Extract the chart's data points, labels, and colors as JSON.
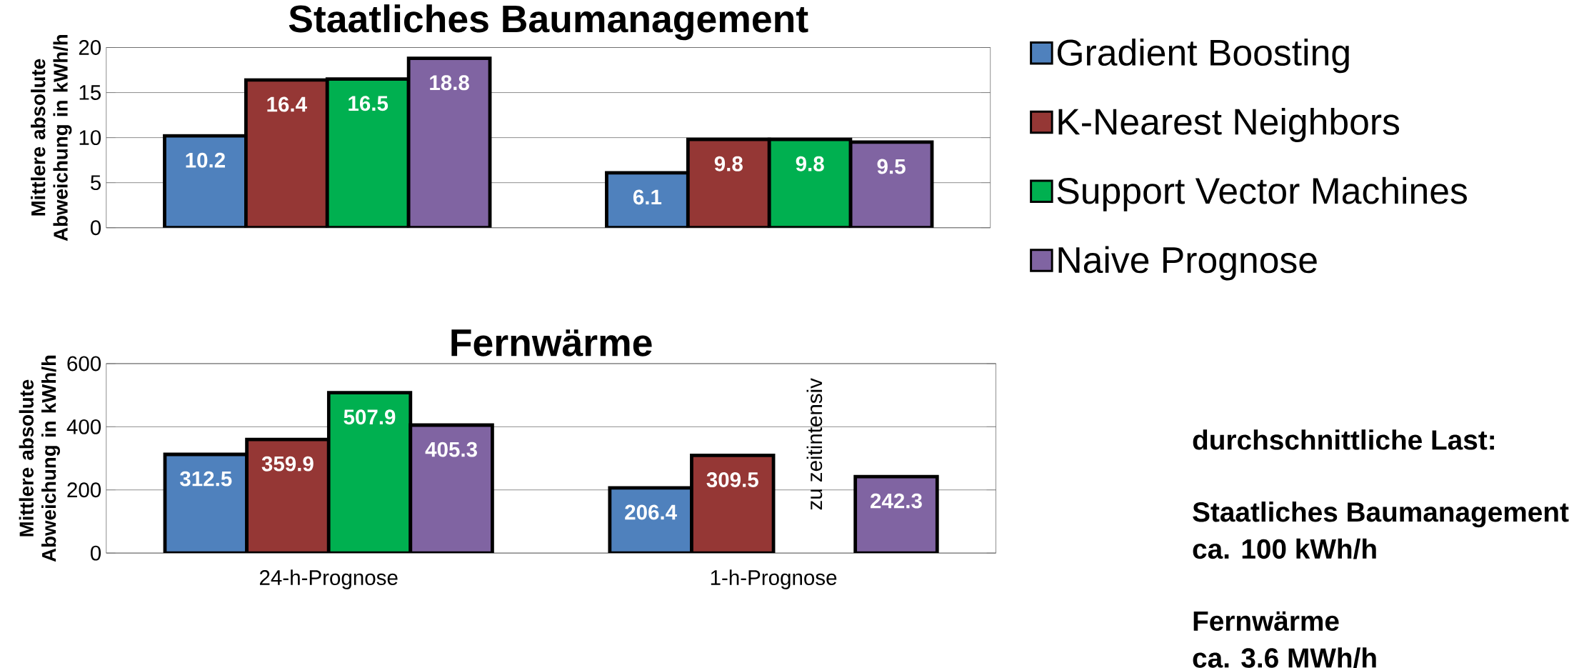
{
  "chart_data": [
    {
      "type": "bar",
      "title": "Staatliches Baumanagement",
      "ylabel": "Mittlere absolute Abweichung in kWh/h",
      "categories": [
        null,
        null
      ],
      "tick_labels": "y",
      "series": [
        {
          "name": "Gradient Boosting",
          "color": "#4f81bd",
          "values": [
            10.2,
            6.1
          ]
        },
        {
          "name": "K-Nearest Neighbors",
          "color": "#953735",
          "values": [
            16.4,
            9.8
          ]
        },
        {
          "name": "Support Vector Machines",
          "color": "#00b050",
          "values": [
            16.5,
            9.8
          ]
        },
        {
          "name": "Naive Prognose",
          "color": "#8064a2",
          "values": [
            18.8,
            9.5
          ]
        }
      ],
      "ylim": [
        0,
        20
      ],
      "yticks": [
        0,
        5,
        10,
        15,
        20
      ],
      "grid": "y",
      "legend": "right",
      "data_labels": true
    },
    {
      "type": "bar",
      "title": "Fernwärme",
      "ylabel": "Mittlere absolute Abweichung in kWh/h",
      "categories": [
        "24-h-Prognose",
        "1-h-Prognose"
      ],
      "series": [
        {
          "color": "#4f81bd",
          "values": [
            312.5,
            206.4
          ]
        },
        {
          "color": "#953735",
          "values": [
            359.9,
            309.5
          ]
        },
        {
          "color": "#00b050",
          "values": [
            507.9,
            null
          ]
        },
        {
          "color": "#8064a2",
          "values": [
            405.3,
            242.3
          ]
        }
      ],
      "ylim": [
        0,
        600
      ],
      "yticks": [
        0,
        200,
        400,
        600
      ],
      "grid": "y",
      "data_labels": true,
      "annotations": [
        "zu zeitintensiv"
      ]
    },
    {
      "type": "other",
      "annotations": [
        "durchschnittliche Last:",
        "Staatliches Baumanagement",
        "ca. 100 kWh/h",
        "Fernwärme",
        "ca. 3.6 MWh/h"
      ]
    }
  ]
}
